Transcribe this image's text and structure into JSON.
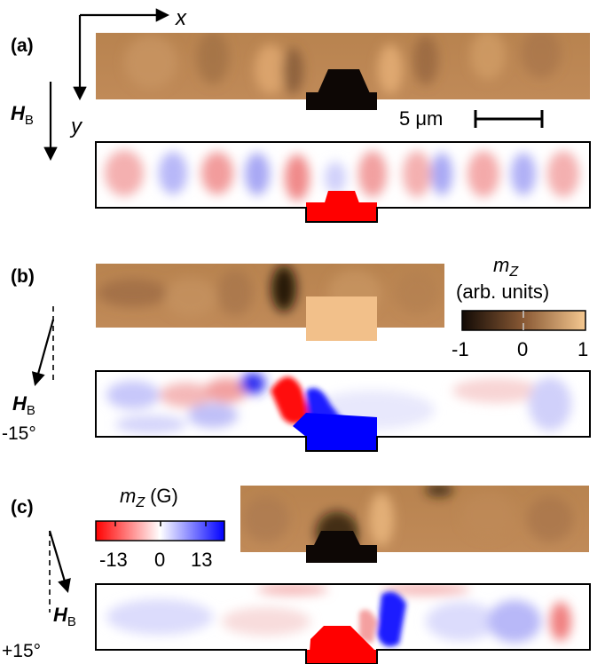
{
  "panels": [
    {
      "label": "(a)",
      "field_label": "H",
      "field_sub": "B",
      "angle": ""
    },
    {
      "label": "(b)",
      "field_label": "H",
      "field_sub": "B",
      "angle": "-15°"
    },
    {
      "label": "(c)",
      "field_label": "H",
      "field_sub": "B",
      "angle": "+15°"
    }
  ],
  "axes": {
    "x": "x",
    "y": "y"
  },
  "scalebar": {
    "label": "5 μm"
  },
  "colorbar_exp": {
    "title_var": "m",
    "title_sub": "Z",
    "units": "(arb. units)",
    "ticks": [
      "-1",
      "0",
      "1"
    ],
    "colors": [
      "#1a0f08",
      "#f2c08a"
    ]
  },
  "colorbar_sim": {
    "title_var": "m",
    "title_sub": "Z",
    "units": "(G)",
    "ticks": [
      "-13",
      "0",
      "13"
    ],
    "colors": [
      "#ff0000",
      "#ffffff",
      "#0000ff"
    ]
  }
}
